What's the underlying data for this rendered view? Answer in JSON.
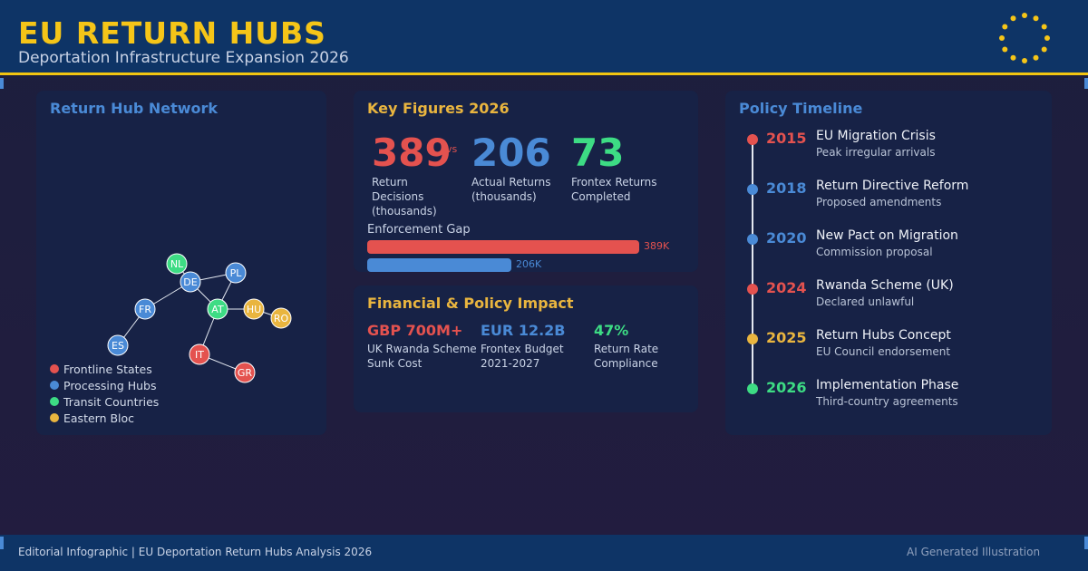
{
  "header": {
    "title": "EU RETURN HUBS",
    "subtitle": "Deportation Infrastructure Expansion 2026"
  },
  "colors": {
    "red": "#e4524f",
    "blue": "#4a8ad6",
    "green": "#3ddc84",
    "yellow": "#e9b53f",
    "gold": "#f5c518"
  },
  "network": {
    "title": "Return Hub Network",
    "nodes": [
      {
        "id": "NL",
        "group": "transit"
      },
      {
        "id": "DE",
        "group": "processing"
      },
      {
        "id": "PL",
        "group": "processing"
      },
      {
        "id": "FR",
        "group": "processing"
      },
      {
        "id": "AT",
        "group": "transit"
      },
      {
        "id": "HU",
        "group": "eastern"
      },
      {
        "id": "RO",
        "group": "eastern"
      },
      {
        "id": "ES",
        "group": "processing"
      },
      {
        "id": "IT",
        "group": "frontline"
      },
      {
        "id": "GR",
        "group": "frontline"
      }
    ],
    "legend": [
      {
        "label": "Frontline States",
        "color": "#e4524f"
      },
      {
        "label": "Processing Hubs",
        "color": "#4a8ad6"
      },
      {
        "label": "Transit Countries",
        "color": "#3ddc84"
      },
      {
        "label": "Eastern Bloc",
        "color": "#e9b53f"
      }
    ]
  },
  "key_figures": {
    "title": "Key Figures 2026",
    "vs": "vs",
    "items": [
      {
        "value": "389",
        "label": "Return Decisions (thousands)",
        "color": "#e4524f"
      },
      {
        "value": "206",
        "label": "Actual Returns (thousands)",
        "color": "#4a8ad6"
      },
      {
        "value": "73",
        "label": "Frontex Returns Completed",
        "color": "#3ddc84"
      }
    ],
    "gap": {
      "title": "Enforcement Gap",
      "decisions": 389,
      "returns": 206,
      "decisions_label": "389K",
      "returns_label": "206K"
    }
  },
  "financial": {
    "title": "Financial & Policy Impact",
    "items": [
      {
        "value": "GBP 700M+",
        "label": "UK Rwanda Scheme Sunk Cost",
        "color": "#e4524f"
      },
      {
        "value": "EUR 12.2B",
        "label": "Frontex Budget 2021-2027",
        "color": "#4a8ad6"
      },
      {
        "value": "47%",
        "label": "Return Rate Compliance",
        "color": "#3ddc84"
      }
    ]
  },
  "timeline": {
    "title": "Policy Timeline",
    "events": [
      {
        "year": "2015",
        "event": "EU Migration Crisis",
        "desc": "Peak irregular arrivals",
        "color": "#e4524f"
      },
      {
        "year": "2018",
        "event": "Return Directive Reform",
        "desc": "Proposed amendments",
        "color": "#4a8ad6"
      },
      {
        "year": "2020",
        "event": "New Pact on Migration",
        "desc": "Commission proposal",
        "color": "#4a8ad6"
      },
      {
        "year": "2024",
        "event": "Rwanda Scheme (UK)",
        "desc": "Declared unlawful",
        "color": "#e4524f"
      },
      {
        "year": "2025",
        "event": "Return Hubs Concept",
        "desc": "EU Council endorsement",
        "color": "#e9b53f"
      },
      {
        "year": "2026",
        "event": "Implementation Phase",
        "desc": "Third-country agreements",
        "color": "#3ddc84"
      }
    ]
  },
  "footer": {
    "left": "Editorial Infographic | EU Deportation Return Hubs Analysis 2026",
    "right": "AI Generated Illustration"
  }
}
